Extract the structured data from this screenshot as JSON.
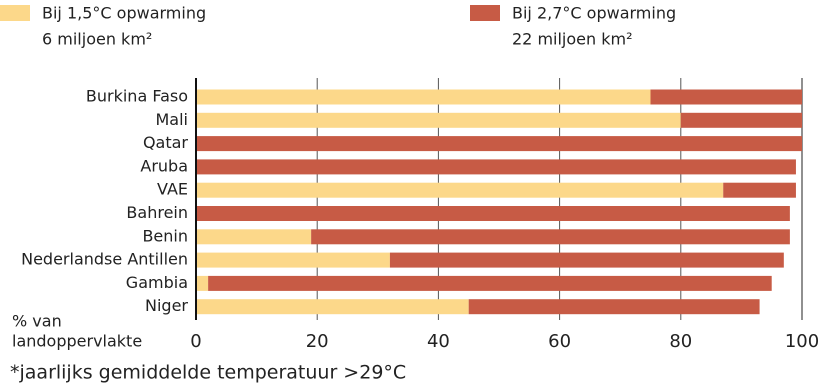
{
  "chart_data": {
    "type": "stacked-barh",
    "categories": [
      "Burkina Faso",
      "Mali",
      "Qatar",
      "Aruba",
      "VAE",
      "Bahrein",
      "Benin",
      "Nederlandse Antillen",
      "Gambia",
      "Niger"
    ],
    "series": [
      {
        "name": "Bij 1,5°C opwarming",
        "note": "6 miljoen km²",
        "color": "#fcd88a",
        "values": [
          75,
          80,
          0,
          0,
          87,
          0,
          19,
          32,
          2,
          45
        ]
      },
      {
        "name": "Bij 2,7°C opwarming",
        "note": "22 miljoen km²",
        "color": "#c75b45",
        "values": [
          25,
          20,
          100,
          99,
          12,
          98,
          79,
          65,
          93,
          48
        ]
      }
    ],
    "xlim": [
      0,
      100
    ],
    "xticks": [
      0,
      20,
      40,
      60,
      80,
      100
    ],
    "x_label": [
      "% van",
      "landoppervlakte"
    ],
    "footnote": "*jaarlijks gemiddelde temperatuur >29°C",
    "grid": true
  }
}
